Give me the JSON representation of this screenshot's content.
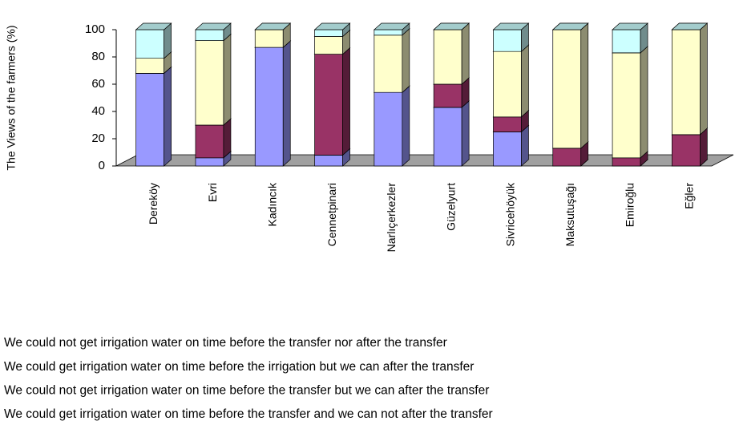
{
  "chart_data": {
    "type": "bar3d_stacked",
    "y_label": "The Views of the farmers (%)",
    "categories": [
      "Dereköy",
      "Evri",
      "Kadıncık",
      "Cennetpinari",
      "Narlıçerkezler",
      "Güzelyurt",
      "Sivricehöyük",
      "Maksutuşağı",
      "Emiroğlu",
      "Eğler"
    ],
    "series": [
      {
        "name": "We could get irrigation water on time before the transfer and we can not after the transfer",
        "color": "#9999ff",
        "values": [
          68,
          6,
          87,
          8,
          54,
          43,
          25,
          0,
          0,
          0
        ]
      },
      {
        "name": "We could not get irrigation water on time before the transfer but we can after the transfer",
        "color": "#993366",
        "values": [
          0,
          24,
          0,
          74,
          0,
          17,
          11,
          13,
          6,
          23
        ]
      },
      {
        "name": "We could  get irrigation water on time before the irrigation but we can after the transfer",
        "color": "#ffffcc",
        "values": [
          11,
          62,
          13,
          13,
          42,
          40,
          48,
          87,
          77,
          77
        ]
      },
      {
        "name": "We could not get irrigation water on time before the transfer nor after the transfer",
        "color": "#ccffff",
        "values": [
          21,
          8,
          0,
          5,
          4,
          0,
          16,
          0,
          17,
          0
        ]
      }
    ],
    "ylim": [
      0,
      100
    ],
    "yticks": [
      0,
      20,
      40,
      60,
      80,
      100
    ],
    "grid": false
  }
}
